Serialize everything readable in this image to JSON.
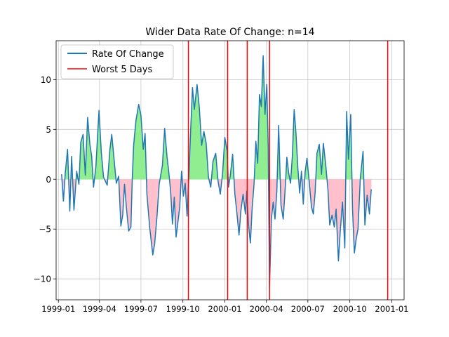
{
  "chart_data": {
    "type": "line",
    "title": "Wider Data Rate Of Change: n=14",
    "xlabel": "",
    "ylabel": "",
    "xlim": [
      "1998-12-27",
      "2001-01-28"
    ],
    "ylim": [
      -12.1,
      13.9
    ],
    "grid": true,
    "legend_position": "top-left",
    "x_ticks": [
      "1999-01",
      "1999-04",
      "1999-07",
      "1999-10",
      "2000-01",
      "2000-04",
      "2000-07",
      "2000-10",
      "2001-01"
    ],
    "y_ticks": [
      -10,
      -5,
      0,
      5,
      10
    ],
    "series": [
      {
        "name": "Rate Of Change",
        "color": "#1f77b4",
        "points": [
          [
            "1999-01-08",
            0.5
          ],
          [
            "1999-01-12",
            -2.2
          ],
          [
            "1999-01-16",
            0.6
          ],
          [
            "1999-01-21",
            3.0
          ],
          [
            "1999-01-26",
            -3.2
          ],
          [
            "1999-01-30",
            2.3
          ],
          [
            "1999-02-04",
            -3.1
          ],
          [
            "1999-02-10",
            0.8
          ],
          [
            "1999-02-15",
            -0.5
          ],
          [
            "1999-02-19",
            3.7
          ],
          [
            "1999-02-24",
            4.5
          ],
          [
            "1999-03-01",
            0.4
          ],
          [
            "1999-03-06",
            6.2
          ],
          [
            "1999-03-11",
            3.5
          ],
          [
            "1999-03-15",
            2.3
          ],
          [
            "1999-03-19",
            -0.8
          ],
          [
            "1999-03-24",
            1.2
          ],
          [
            "1999-03-31",
            6.9
          ],
          [
            "1999-04-05",
            2.7
          ],
          [
            "1999-04-10",
            0.2
          ],
          [
            "1999-04-18",
            -0.6
          ],
          [
            "1999-04-24",
            3.0
          ],
          [
            "1999-04-28",
            4.5
          ],
          [
            "1999-05-03",
            2.0
          ],
          [
            "1999-05-08",
            -0.4
          ],
          [
            "1999-05-13",
            0.3
          ],
          [
            "1999-05-18",
            -4.7
          ],
          [
            "1999-05-22",
            -3.6
          ],
          [
            "1999-05-26",
            -0.5
          ],
          [
            "1999-05-30",
            -2.8
          ],
          [
            "1999-06-04",
            -5.2
          ],
          [
            "1999-06-09",
            -4.8
          ],
          [
            "1999-06-12",
            0.2
          ],
          [
            "1999-06-15",
            3.4
          ],
          [
            "1999-06-20",
            5.9
          ],
          [
            "1999-06-26",
            7.5
          ],
          [
            "1999-07-01",
            6.4
          ],
          [
            "1999-07-06",
            3.0
          ],
          [
            "1999-07-10",
            4.6
          ],
          [
            "1999-07-14",
            -1.5
          ],
          [
            "1999-07-20",
            -4.8
          ],
          [
            "1999-07-27",
            -7.6
          ],
          [
            "1999-07-31",
            -6.5
          ],
          [
            "1999-08-05",
            -3.8
          ],
          [
            "1999-08-10",
            -0.5
          ],
          [
            "1999-08-17",
            1.4
          ],
          [
            "1999-08-22",
            5.1
          ],
          [
            "1999-08-27",
            2.3
          ],
          [
            "1999-08-31",
            0.7
          ],
          [
            "1999-09-04",
            -1.2
          ],
          [
            "1999-09-08",
            -4.5
          ],
          [
            "1999-09-12",
            -1.8
          ],
          [
            "1999-09-16",
            -5.8
          ],
          [
            "1999-09-20",
            -4.3
          ],
          [
            "1999-09-24",
            -2.8
          ],
          [
            "1999-09-28",
            0.8
          ],
          [
            "1999-10-02",
            -1.7
          ],
          [
            "1999-10-06",
            -0.4
          ],
          [
            "1999-10-10",
            -3.7
          ],
          [
            "1999-10-14",
            0.2
          ],
          [
            "1999-10-18",
            5.0
          ],
          [
            "1999-10-22",
            9.2
          ],
          [
            "1999-10-26",
            7.0
          ],
          [
            "1999-11-01",
            9.5
          ],
          [
            "1999-11-06",
            7.2
          ],
          [
            "1999-11-11",
            3.4
          ],
          [
            "1999-11-16",
            4.8
          ],
          [
            "1999-11-21",
            3.6
          ],
          [
            "1999-11-26",
            0.2
          ],
          [
            "1999-12-01",
            -0.8
          ],
          [
            "1999-12-06",
            1.8
          ],
          [
            "1999-12-12",
            2.6
          ],
          [
            "1999-12-17",
            -0.2
          ],
          [
            "1999-12-22",
            -1.5
          ],
          [
            "1999-12-27",
            0.6
          ],
          [
            "2000-01-01",
            4.2
          ],
          [
            "2000-01-06",
            2.8
          ],
          [
            "2000-01-09",
            -0.8
          ],
          [
            "2000-01-13",
            0.4
          ],
          [
            "2000-01-18",
            2.5
          ],
          [
            "2000-01-23",
            -1.5
          ],
          [
            "2000-01-27",
            -3.2
          ],
          [
            "2000-02-01",
            -5.6
          ],
          [
            "2000-02-05",
            -3.2
          ],
          [
            "2000-02-10",
            -1.5
          ],
          [
            "2000-02-15",
            -3.5
          ],
          [
            "2000-02-18",
            -1.2
          ],
          [
            "2000-02-22",
            -4.6
          ],
          [
            "2000-02-26",
            -6.4
          ],
          [
            "2000-03-01",
            -2.8
          ],
          [
            "2000-03-05",
            -0.5
          ],
          [
            "2000-03-09",
            3.8
          ],
          [
            "2000-03-13",
            1.6
          ],
          [
            "2000-03-17",
            8.5
          ],
          [
            "2000-03-21",
            7.3
          ],
          [
            "2000-03-25",
            12.4
          ],
          [
            "2000-03-29",
            6.5
          ],
          [
            "2000-04-02",
            9.5
          ],
          [
            "2000-04-05",
            3.2
          ],
          [
            "2000-04-08",
            -10.9
          ],
          [
            "2000-04-12",
            -4.0
          ],
          [
            "2000-04-16",
            -2.3
          ],
          [
            "2000-04-20",
            -4.0
          ],
          [
            "2000-04-24",
            -1.2
          ],
          [
            "2000-04-28",
            5.4
          ],
          [
            "2000-05-03",
            -2.6
          ],
          [
            "2000-05-08",
            -4.0
          ],
          [
            "2000-05-12",
            -1.2
          ],
          [
            "2000-05-16",
            2.2
          ],
          [
            "2000-05-20",
            0.6
          ],
          [
            "2000-05-24",
            -0.4
          ],
          [
            "2000-05-28",
            2.3
          ],
          [
            "2000-06-01",
            7.0
          ],
          [
            "2000-06-05",
            4.6
          ],
          [
            "2000-06-09",
            1.2
          ],
          [
            "2000-06-13",
            -1.4
          ],
          [
            "2000-06-17",
            0.8
          ],
          [
            "2000-06-21",
            -2.5
          ],
          [
            "2000-06-25",
            0.7
          ],
          [
            "2000-06-29",
            2.1
          ],
          [
            "2000-07-04",
            -0.3
          ],
          [
            "2000-07-09",
            -2.8
          ],
          [
            "2000-07-13",
            -3.5
          ],
          [
            "2000-07-17",
            -1.3
          ],
          [
            "2000-07-21",
            2.6
          ],
          [
            "2000-07-26",
            3.5
          ],
          [
            "2000-07-31",
            0.5
          ],
          [
            "2000-08-04",
            3.6
          ],
          [
            "2000-08-09",
            1.5
          ],
          [
            "2000-08-14",
            -1.0
          ],
          [
            "2000-08-18",
            -4.6
          ],
          [
            "2000-08-23",
            -3.6
          ],
          [
            "2000-08-28",
            -4.8
          ],
          [
            "2000-09-01",
            -3.0
          ],
          [
            "2000-09-06",
            -8.2
          ],
          [
            "2000-09-10",
            -5.2
          ],
          [
            "2000-09-15",
            -2.3
          ],
          [
            "2000-09-20",
            -6.9
          ],
          [
            "2000-09-24",
            6.8
          ],
          [
            "2000-09-28",
            2.0
          ],
          [
            "2000-10-03",
            6.5
          ],
          [
            "2000-10-07",
            -3.0
          ],
          [
            "2000-10-11",
            -7.4
          ],
          [
            "2000-10-15",
            -6.0
          ],
          [
            "2000-10-19",
            -5.0
          ],
          [
            "2000-10-24",
            0.1
          ],
          [
            "2000-10-30",
            2.8
          ],
          [
            "2000-11-03",
            -4.6
          ],
          [
            "2000-11-08",
            -1.6
          ],
          [
            "2000-11-13",
            -3.5
          ],
          [
            "2000-11-17",
            -1.0
          ]
        ]
      }
    ],
    "fill_above_zero_color": "#90ee90",
    "fill_below_zero_color": "#ffc0cb",
    "worst_days": {
      "name": "Worst 5 Days",
      "color": "#ff0000",
      "dates": [
        "1999-10-13",
        "2000-01-07",
        "2000-02-19",
        "2000-04-08",
        "2000-12-23"
      ]
    }
  }
}
